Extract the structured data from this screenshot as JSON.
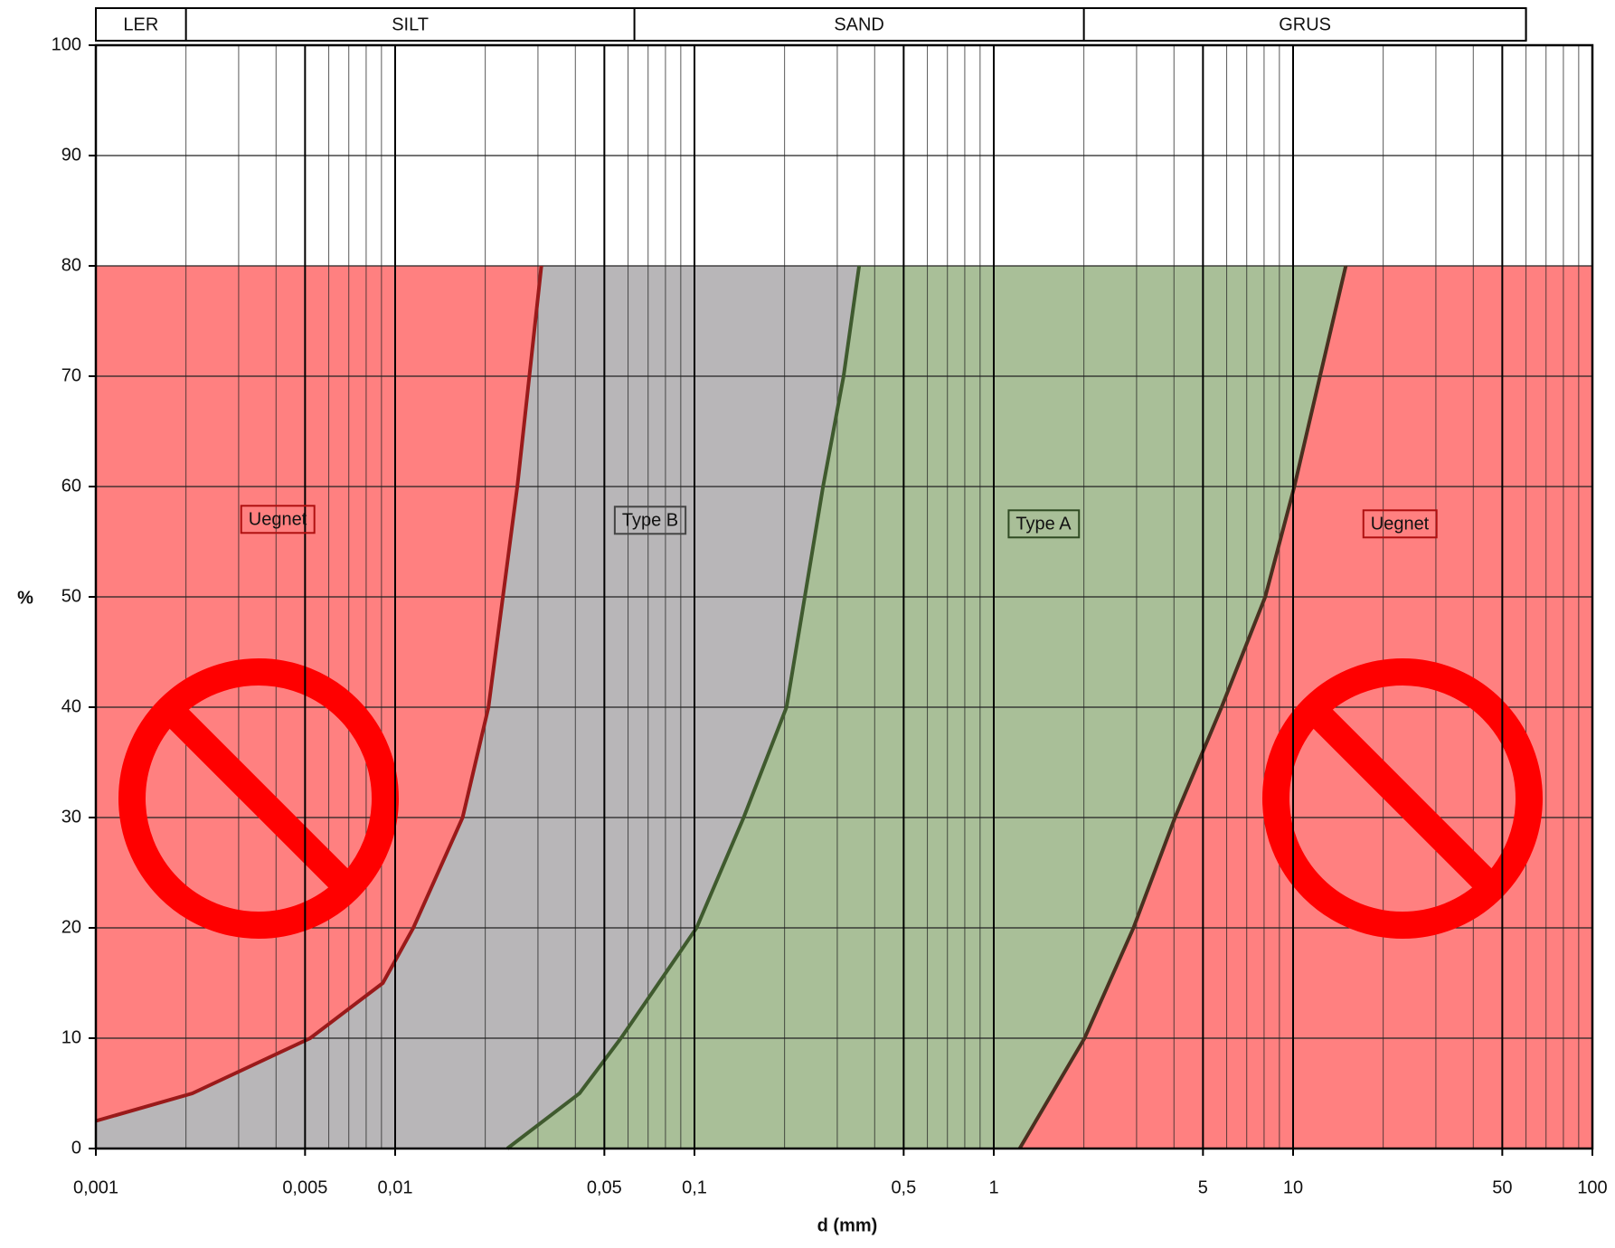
{
  "chart_data": {
    "type": "area",
    "xlabel": "d (mm)",
    "ylabel": "%",
    "log_x": true,
    "grid": true,
    "xlim": [
      0.001,
      100
    ],
    "ylim": [
      0,
      100
    ],
    "yticks": [
      0,
      10,
      20,
      30,
      40,
      50,
      60,
      70,
      80,
      90,
      100
    ],
    "xticks": [
      {
        "value": 0.001,
        "label": "0,001"
      },
      {
        "value": 0.005,
        "label": "0,005"
      },
      {
        "value": 0.01,
        "label": "0,01"
      },
      {
        "value": 0.05,
        "label": "0,05"
      },
      {
        "value": 0.1,
        "label": "0,1"
      },
      {
        "value": 0.5,
        "label": "0,5"
      },
      1,
      5,
      10,
      50,
      100
    ],
    "x_grid": [
      0.001,
      0.002,
      0.003,
      0.004,
      0.005,
      0.006,
      0.007,
      0.008,
      0.009,
      0.01,
      0.02,
      0.03,
      0.04,
      0.05,
      0.06,
      0.07,
      0.08,
      0.09,
      0.1,
      0.2,
      0.3,
      0.4,
      0.5,
      0.6,
      0.7,
      0.8,
      0.9,
      1,
      2,
      3,
      4,
      5,
      6,
      7,
      8,
      9,
      10,
      20,
      30,
      40,
      50,
      60,
      70,
      80,
      90,
      100
    ],
    "soil_classes": {
      "labels": [
        "LER",
        "SILT",
        "SAND",
        "GRUS"
      ],
      "bounds": [
        0.001,
        0.002,
        0.063,
        2,
        60
      ]
    },
    "boundaries": [
      {
        "color": "#9a1a1a",
        "x": [
          0.001,
          0.0021,
          0.0052,
          0.0091,
          0.0115,
          0.0168,
          0.0205,
          0.0256,
          0.0308
        ],
        "y": [
          2.5,
          5,
          10,
          15,
          20,
          30,
          40,
          60,
          80
        ]
      },
      {
        "color": "#3f5a2e",
        "x": [
          0.0237,
          0.0413,
          0.0568,
          0.1016,
          0.146,
          0.203,
          0.269,
          0.315,
          0.355
        ],
        "y": [
          0,
          5,
          10,
          20,
          30,
          40,
          60,
          70,
          80
        ]
      },
      {
        "color": "#4a3020",
        "x": [
          1.22,
          2.01,
          2.93,
          4.03,
          5.77,
          8.07,
          10.1,
          12.3,
          15.0
        ],
        "y": [
          0,
          10,
          20,
          30,
          40,
          50,
          60,
          70,
          80
        ]
      }
    ],
    "regions": [
      {
        "label": "Uegnet",
        "color": "#ff8080"
      },
      {
        "label": "Type B",
        "color": "#b8b6b8"
      },
      {
        "label": "Type A",
        "color": "#a9bf98"
      },
      {
        "label": "Uegnet",
        "color": "#ff8080"
      }
    ]
  }
}
